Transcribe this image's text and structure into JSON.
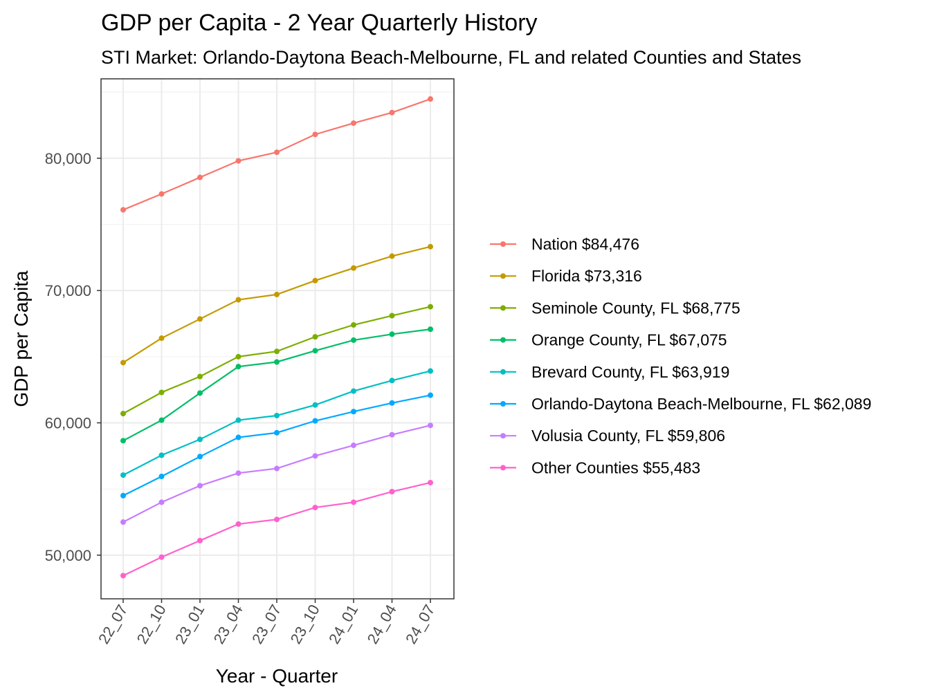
{
  "chart_data": {
    "type": "line",
    "title": "GDP per Capita - 2 Year Quarterly History",
    "subtitle": "STI Market: Orlando-Daytona Beach-Melbourne, FL and related Counties and States",
    "xlabel": "Year - Quarter",
    "ylabel": "GDP per Capita",
    "categories": [
      "22_07",
      "22_10",
      "23_01",
      "23_04",
      "23_07",
      "23_10",
      "24_01",
      "24_04",
      "24_07"
    ],
    "ylim": [
      46700,
      86000
    ],
    "yticks": [
      50000,
      60000,
      70000,
      80000
    ],
    "ytick_labels": [
      "50,000",
      "60,000",
      "70,000",
      "80,000"
    ],
    "grid": true,
    "legend_position": "right",
    "series": [
      {
        "name": "Nation $84,476",
        "color": "#F8766D",
        "values": [
          76100,
          77300,
          78550,
          79800,
          80450,
          81800,
          82650,
          83450,
          84476
        ]
      },
      {
        "name": "Florida $73,316",
        "color": "#C49A00",
        "values": [
          64550,
          66400,
          67850,
          69300,
          69700,
          70750,
          71700,
          72600,
          73316
        ]
      },
      {
        "name": "Seminole County, FL $68,775",
        "color": "#7CAE00",
        "values": [
          60700,
          62300,
          63500,
          65000,
          65400,
          66500,
          67400,
          68100,
          68775
        ]
      },
      {
        "name": "Orange County, FL $67,075",
        "color": "#00BE67",
        "values": [
          58650,
          60200,
          62250,
          64250,
          64600,
          65450,
          66250,
          66700,
          67075
        ]
      },
      {
        "name": "Brevard County, FL $63,919",
        "color": "#00BFC4",
        "values": [
          56050,
          57550,
          58750,
          60200,
          60550,
          61350,
          62400,
          63200,
          63919
        ]
      },
      {
        "name": "Orlando-Daytona Beach-Melbourne, FL $62,089",
        "color": "#00A9FF",
        "values": [
          54500,
          55950,
          57450,
          58900,
          59250,
          60150,
          60850,
          61500,
          62089
        ]
      },
      {
        "name": "Volusia County, FL $59,806",
        "color": "#C77CFF",
        "values": [
          52500,
          54000,
          55250,
          56200,
          56550,
          57500,
          58300,
          59100,
          59806
        ]
      },
      {
        "name": "Other Counties $55,483",
        "color": "#FF61CC",
        "values": [
          48450,
          49850,
          51100,
          52350,
          52700,
          53600,
          54000,
          54800,
          55483
        ]
      }
    ]
  }
}
